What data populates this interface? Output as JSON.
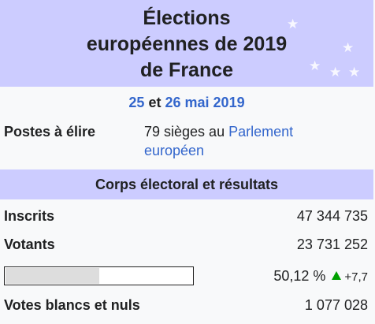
{
  "infobox": {
    "title_lines": [
      "Élections",
      "européennes de 2019",
      "de France"
    ],
    "dates": {
      "day1": "25",
      "conj": "et",
      "day2_month": "26 mai",
      "year": "2019"
    },
    "seats": {
      "label": "Postes à élire",
      "count_text": "79 sièges au",
      "parliament_line1": "Parlement",
      "parliament_line2": "européen"
    },
    "section_title": "Corps électoral et résultats",
    "registered": {
      "label": "Inscrits",
      "value": "47 344 735"
    },
    "voters": {
      "label": "Votants",
      "value": "23 731 252"
    },
    "turnout": {
      "percent_text": "50,12 %",
      "fraction": 0.5012,
      "delta": "+7,7",
      "arrow_color": "#00a000",
      "icon": "up-arrow-icon"
    },
    "blank": {
      "label": "Votes blancs et nuls",
      "value": "1 077 028"
    },
    "colors": {
      "header_band": "#ccccff",
      "link": "#3366cc",
      "background": "#f8f9fa"
    }
  }
}
